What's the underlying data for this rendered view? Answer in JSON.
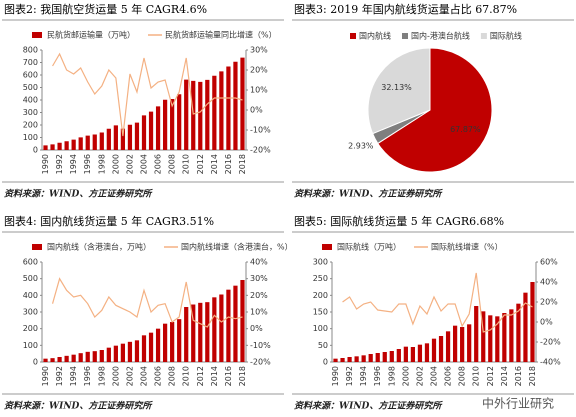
{
  "chart_data": [
    {
      "type": "combo",
      "title": "图表2:   我国航空货运量 5 年 CAGR4.6%",
      "source": "资料来源：WIND、方正证券研究所",
      "categories": [
        "1990",
        null,
        "1992",
        null,
        "1994",
        null,
        "1996",
        null,
        "1998",
        null,
        "2000",
        null,
        "2002",
        null,
        "2004",
        null,
        "2006",
        null,
        "2008",
        null,
        "2010",
        null,
        "2012",
        null,
        "2014",
        null,
        "2016",
        null,
        "2018"
      ],
      "series": [
        {
          "name": "民航货邮运输量（万吨）",
          "type": "bar",
          "color": "#c00000",
          "values": [
            37,
            45,
            58,
            70,
            83,
            101,
            115,
            124,
            140,
            170,
            197,
            171,
            202,
            219,
            277,
            307,
            349,
            402,
            408,
            446,
            563,
            553,
            545,
            561,
            594,
            629,
            668,
            706,
            739
          ]
        },
        {
          "name": "民航货邮运输量同比增速（%）",
          "type": "line",
          "axis": "y2",
          "color": "#f4b183",
          "values": [
            null,
            22,
            28,
            20,
            18,
            21,
            14,
            8,
            12,
            20,
            16,
            -13,
            18,
            9,
            26,
            11,
            14,
            15,
            2,
            9,
            26,
            -2,
            -1,
            3,
            6,
            6,
            6,
            6,
            5
          ]
        }
      ],
      "ylim": [
        0,
        800
      ],
      "yticks": [
        0,
        100,
        200,
        300,
        400,
        500,
        600,
        700,
        800
      ],
      "y2lim": [
        -20,
        30
      ],
      "y2ticks": [
        {
          "value": -20,
          "label": "-20%"
        },
        {
          "value": -10,
          "label": "-10%"
        },
        {
          "value": 0,
          "label": "0%"
        },
        {
          "value": 10,
          "label": "10%"
        },
        {
          "value": 20,
          "label": "20%"
        },
        {
          "value": 30,
          "label": "30%"
        }
      ]
    },
    {
      "type": "pie",
      "title": "图表3:   2019 年国内航线货运量占比 67.87%",
      "source": "资料来源：WIND、方正证券研究所",
      "categories": [
        "国内航线",
        "国内-港澳台航线",
        "国际航线"
      ],
      "values": [
        67.87,
        2.93,
        32.13
      ],
      "value_labels": [
        "67.87%",
        "2.93%",
        "32.13%"
      ],
      "colors": [
        "#c00000",
        "#7f7f7f",
        "#d9d9d9"
      ]
    },
    {
      "type": "combo",
      "title": "图表4:   国内航线货运量 5 年 CAGR3.51%",
      "source": "资料来源：WIND、方正证券研究所",
      "categories": [
        "1990",
        null,
        "1992",
        null,
        "1994",
        null,
        "1996",
        null,
        "1998",
        null,
        "2000",
        null,
        "2002",
        null,
        "2004",
        null,
        "2006",
        null,
        "2008",
        null,
        "2010",
        null,
        "2012",
        null,
        "2014",
        null,
        "2016",
        null,
        "2018"
      ],
      "series": [
        {
          "name": "国内航线（含港澳台，万吨）",
          "type": "bar",
          "color": "#c00000",
          "values": [
            20,
            23,
            30,
            37,
            44,
            53,
            61,
            65,
            72,
            86,
            98,
            110,
            121,
            130,
            160,
            176,
            200,
            230,
            240,
            257,
            330,
            345,
            355,
            359,
            388,
            405,
            434,
            458,
            492
          ]
        },
        {
          "name": "国内航线增速（含港澳台，%）",
          "type": "line",
          "axis": "y2",
          "color": "#f4b183",
          "values": [
            null,
            15,
            30,
            23,
            19,
            20,
            15,
            7,
            11,
            19,
            14,
            12,
            10,
            7,
            23,
            10,
            14,
            15,
            4,
            7,
            28,
            5,
            3,
            1,
            8,
            4,
            7,
            6,
            7
          ]
        }
      ],
      "ylim": [
        0,
        600
      ],
      "yticks": [
        0,
        100,
        200,
        300,
        400,
        500,
        600
      ],
      "y2lim": [
        -20,
        40
      ],
      "y2ticks": [
        {
          "value": -20,
          "label": "-20%"
        },
        {
          "value": -10,
          "label": "-10%"
        },
        {
          "value": 0,
          "label": "0%"
        },
        {
          "value": 10,
          "label": "10%"
        },
        {
          "value": 20,
          "label": "20%"
        },
        {
          "value": 30,
          "label": "30%"
        },
        {
          "value": 40,
          "label": "40%"
        }
      ]
    },
    {
      "type": "combo",
      "title": "图表5:   国际航线货运量 5 年 CAGR6.68%",
      "source": "资料来源：WIND、方正证券研究所",
      "categories": [
        "1990",
        null,
        "1992",
        null,
        "1994",
        null,
        "1996",
        null,
        "1998",
        null,
        "2000",
        null,
        "2002",
        null,
        "2004",
        null,
        "2006",
        null,
        "2008",
        null,
        "2010",
        null,
        "2012",
        null,
        "2014",
        null,
        "2016",
        null,
        "2018"
      ],
      "series": [
        {
          "name": "国际航线（万吨）",
          "type": "bar",
          "color": "#c00000",
          "values": [
            10,
            12,
            15,
            17,
            20,
            24,
            27,
            30,
            33,
            39,
            46,
            45,
            52,
            56,
            70,
            78,
            92,
            109,
            105,
            113,
            168,
            152,
            140,
            137,
            147,
            158,
            175,
            208,
            240
          ]
        },
        {
          "name": "国际航线增速（%）",
          "type": "line",
          "axis": "y2",
          "color": "#f4b183",
          "values": [
            null,
            20,
            25,
            13,
            18,
            20,
            12,
            11,
            10,
            18,
            18,
            -2,
            16,
            8,
            25,
            11,
            18,
            18,
            -4,
            8,
            49,
            -10,
            -8,
            -2,
            7,
            7,
            11,
            19,
            15
          ]
        }
      ],
      "ylim": [
        0,
        300
      ],
      "yticks": [
        0,
        50,
        100,
        150,
        200,
        250,
        300
      ],
      "y2lim": [
        -40,
        60
      ],
      "y2ticks": [
        {
          "value": -40,
          "label": "-40%"
        },
        {
          "value": -20,
          "label": "-20%"
        },
        {
          "value": 0,
          "label": "0%"
        },
        {
          "value": 20,
          "label": "20%"
        },
        {
          "value": 40,
          "label": "40%"
        },
        {
          "value": 60,
          "label": "60%"
        }
      ]
    }
  ],
  "watermark": "中外行业研究"
}
